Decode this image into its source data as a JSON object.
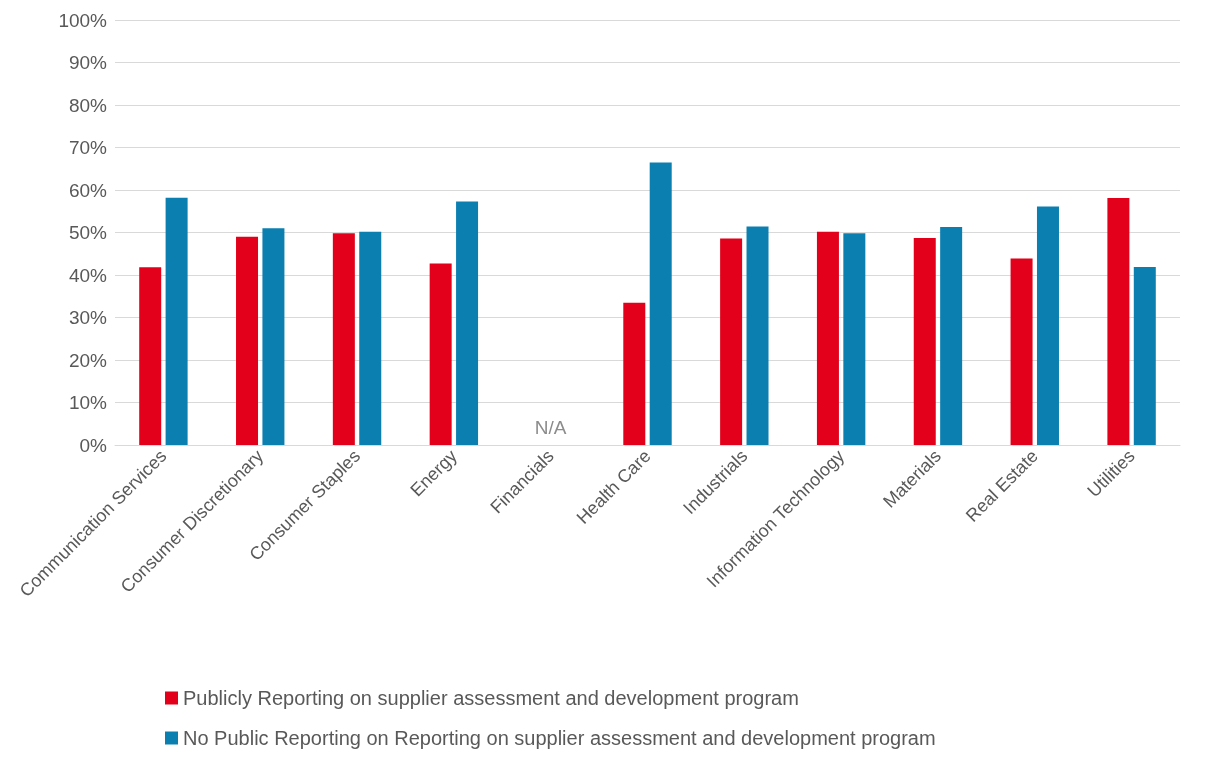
{
  "chart_data": {
    "type": "bar",
    "categories": [
      "Communication Services",
      "Consumer Discretionary",
      "Consumer Staples",
      "Energy",
      "Financials",
      "Health Care",
      "Industrials",
      "Information Technology",
      "Materials",
      "Real Estate",
      "Utilities"
    ],
    "series": [
      {
        "name": "Publicly Reporting on supplier assessment and development program",
        "color": "#e2001a",
        "values": [
          41.8,
          49.0,
          49.8,
          42.7,
          null,
          33.5,
          48.6,
          50.2,
          48.7,
          43.9,
          58.1
        ]
      },
      {
        "name": "No Public Reporting on Reporting on supplier assessment and development program",
        "color": "#0a7fb0",
        "values": [
          58.2,
          51.0,
          50.2,
          57.3,
          null,
          66.5,
          51.4,
          49.8,
          51.3,
          56.1,
          41.9
        ]
      }
    ],
    "ylim": [
      0,
      100
    ],
    "yticks": [
      {
        "value": 0,
        "label": "0%"
      },
      {
        "value": 10,
        "label": "10%"
      },
      {
        "value": 20,
        "label": "20%"
      },
      {
        "value": 30,
        "label": "30%"
      },
      {
        "value": 40,
        "label": "40%"
      },
      {
        "value": 50,
        "label": "50%"
      },
      {
        "value": 60,
        "label": "60%"
      },
      {
        "value": 70,
        "label": "70%"
      },
      {
        "value": 80,
        "label": "80%"
      },
      {
        "value": 90,
        "label": "90%"
      },
      {
        "value": 100,
        "label": "100%"
      }
    ],
    "annotations": [
      "N/A"
    ],
    "grid": "y",
    "legend": "bottom"
  }
}
